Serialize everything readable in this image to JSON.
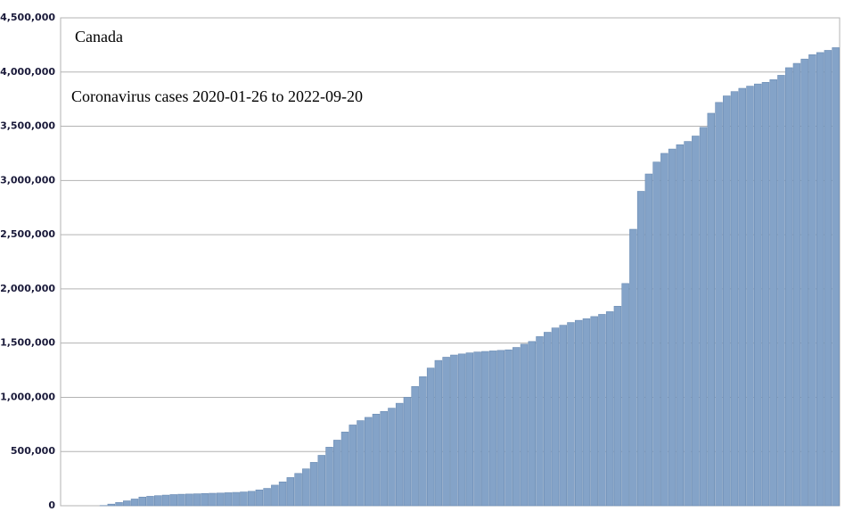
{
  "chart_data": {
    "type": "bar",
    "title": "Canada",
    "subtitle": "Coronavirus cases 2020-01-26 to 2022-09-20",
    "categories": [
      null,
      null,
      null,
      null,
      null,
      null,
      null,
      null,
      null,
      null,
      null,
      null,
      null,
      null,
      null,
      null,
      null,
      null,
      null,
      null,
      null,
      null,
      null,
      null,
      null,
      null,
      null,
      null,
      null,
      null,
      null,
      null,
      null,
      null,
      null,
      null,
      null,
      null,
      null,
      null,
      null,
      null,
      null,
      null,
      null,
      null,
      null,
      null,
      null,
      null,
      null,
      null,
      null,
      null,
      null,
      null,
      null,
      null,
      null,
      null,
      null,
      null,
      null,
      null,
      null,
      null,
      null,
      null,
      null,
      null,
      null,
      null,
      null,
      null,
      null,
      null,
      null,
      null,
      null,
      null,
      null,
      null,
      null,
      null,
      null,
      null,
      null,
      null,
      null,
      null,
      null,
      null,
      null,
      null,
      null,
      null,
      null,
      null,
      null,
      null
    ],
    "values": [
      0,
      0,
      0,
      0,
      0,
      2000,
      15000,
      30000,
      45000,
      62000,
      80000,
      87000,
      93000,
      98000,
      103000,
      106000,
      108000,
      110000,
      113000,
      115000,
      117000,
      120000,
      123000,
      127000,
      133000,
      146000,
      160000,
      190000,
      220000,
      260000,
      298000,
      340000,
      400000,
      465000,
      540000,
      605000,
      680000,
      745000,
      785000,
      815000,
      845000,
      870000,
      900000,
      945000,
      1000000,
      1100000,
      1190000,
      1270000,
      1340000,
      1370000,
      1390000,
      1400000,
      1410000,
      1418000,
      1423000,
      1428000,
      1433000,
      1438000,
      1460000,
      1490000,
      1515000,
      1560000,
      1600000,
      1640000,
      1665000,
      1690000,
      1710000,
      1725000,
      1745000,
      1765000,
      1790000,
      1840000,
      2050000,
      2550000,
      2900000,
      3060000,
      3170000,
      3250000,
      3290000,
      3330000,
      3360000,
      3410000,
      3490000,
      3620000,
      3720000,
      3780000,
      3820000,
      3850000,
      3870000,
      3890000,
      3905000,
      3930000,
      3970000,
      4040000,
      4080000,
      4120000,
      4160000,
      4180000,
      4200000,
      4225000
    ],
    "color": "#84a3c8",
    "ylim": [
      0,
      4500000
    ],
    "yticks": [
      0,
      {
        "value": 500000,
        "label": "500,000"
      },
      {
        "value": 1000000,
        "label": "1,000,000"
      },
      {
        "value": 1500000,
        "label": "1,500,000"
      },
      {
        "value": 2000000,
        "label": "2,000,000"
      },
      {
        "value": 2500000,
        "label": "2,500,000"
      },
      {
        "value": 3000000,
        "label": "3,000,000"
      },
      {
        "value": 3500000,
        "label": "3,500,000"
      },
      {
        "value": 4000000,
        "label": "4,000,000"
      },
      {
        "value": 4500000,
        "label": "4,500,000"
      }
    ],
    "grid": true
  }
}
